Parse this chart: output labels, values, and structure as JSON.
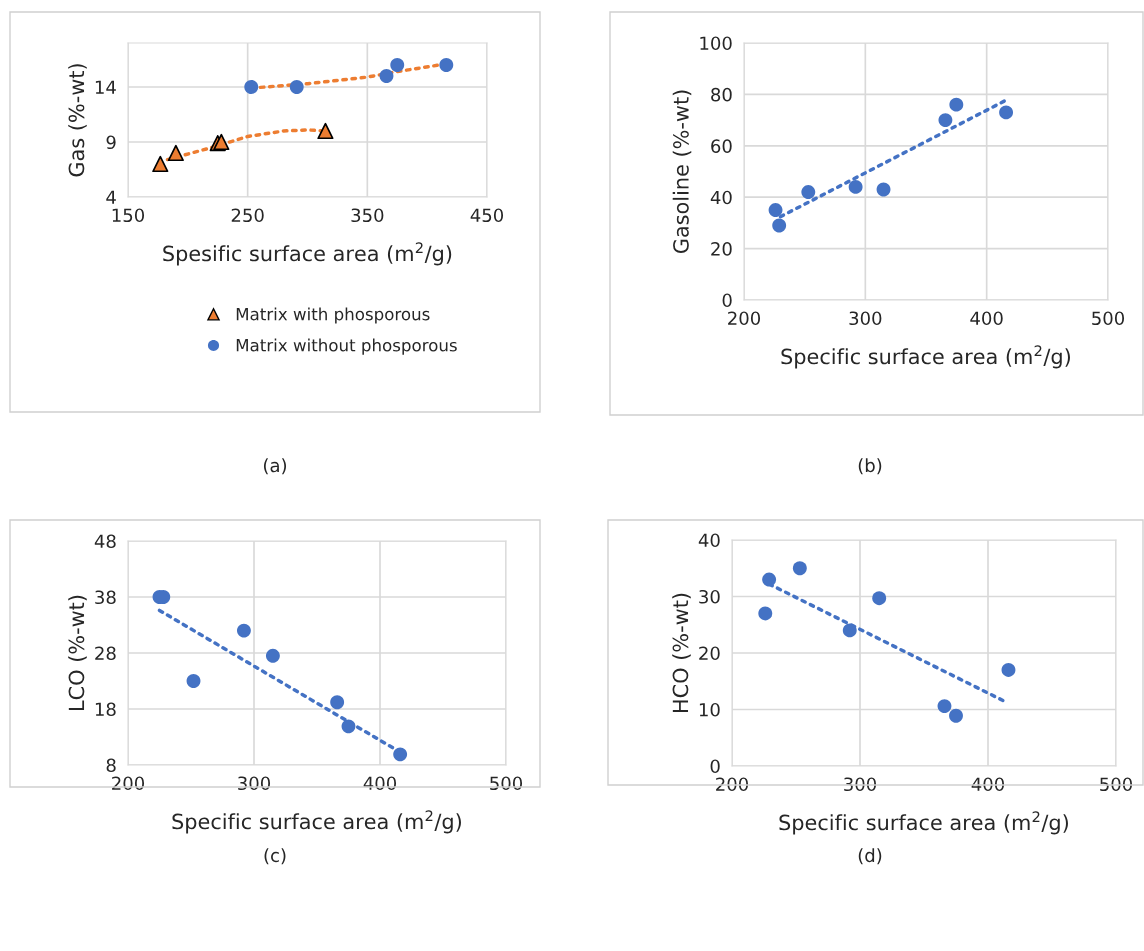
{
  "chart_data": [
    {
      "type": "scatter",
      "xlabel": "Spesific surface area (m$^{2}$/g)",
      "ylabel": "Gas (%-wt)",
      "xlim": [
        150,
        450
      ],
      "xticks": [
        150,
        250,
        350,
        450
      ],
      "ylim": [
        4,
        18
      ],
      "yticks": [
        4,
        9,
        14
      ],
      "grid": true,
      "legend": "bottom",
      "annotations": [
        "(a)"
      ],
      "series": [
        {
          "name": "Matrix with phosporous",
          "color": "#ed7d31",
          "marker": "triangle",
          "x": [
            177,
            190,
            225,
            228,
            315
          ],
          "values": [
            7.0,
            8.0,
            8.9,
            9.0,
            10.0
          ]
        },
        {
          "name": "Matrix without phosporous",
          "color": "#4472c4",
          "marker": "circle",
          "x": [
            253,
            291,
            366,
            375,
            416
          ],
          "values": [
            14.0,
            14.0,
            15.0,
            16.0,
            16.0
          ]
        },
        {
          "type": "line",
          "color": "#ed7d31",
          "marker": "none",
          "line_style": "dotted",
          "x": [
            183,
            220,
            250,
            280,
            300,
            315
          ],
          "values": [
            7.4,
            8.5,
            9.5,
            10.0,
            10.1,
            10.0
          ]
        },
        {
          "type": "line",
          "color": "#ed7d31",
          "marker": "none",
          "line_style": "dotted",
          "x": [
            253,
            300,
            350,
            375,
            416
          ],
          "values": [
            13.9,
            14.3,
            14.9,
            15.4,
            16.1
          ]
        }
      ]
    },
    {
      "type": "scatter",
      "xlabel": "Specific surface area (m$^{2}$/g)",
      "ylabel": "Gasoline (%-wt)",
      "xlim": [
        200,
        500
      ],
      "xticks": [
        200,
        300,
        400,
        500
      ],
      "ylim": [
        0,
        100
      ],
      "yticks": [
        0,
        20,
        40,
        60,
        80,
        100
      ],
      "grid": true,
      "annotations": [
        "(b)"
      ],
      "series": [
        {
          "color": "#4472c4",
          "marker": "circle",
          "x": [
            226,
            229,
            253,
            292,
            315,
            366,
            375,
            416
          ],
          "values": [
            35,
            29,
            42,
            44,
            43,
            70,
            76,
            73
          ]
        },
        {
          "type": "line",
          "color": "#4472c4",
          "marker": "none",
          "line_style": "dotted",
          "x": [
            230,
            415
          ],
          "values": [
            32.4,
            77.5
          ]
        }
      ]
    },
    {
      "type": "scatter",
      "xlabel": "Specific surface area (m$^{2}$/g)",
      "ylabel": "LCO (%-wt)",
      "xlim": [
        200,
        500
      ],
      "xticks": [
        200,
        300,
        400,
        500
      ],
      "ylim": [
        8,
        48
      ],
      "yticks": [
        8,
        18,
        28,
        38,
        48
      ],
      "grid": true,
      "annotations": [
        "(c)"
      ],
      "series": [
        {
          "color": "#4472c4",
          "marker": "circle",
          "x": [
            225,
            228,
            252,
            292,
            315,
            366,
            375,
            416
          ],
          "values": [
            38,
            38,
            23,
            32,
            27.5,
            19.2,
            14.9,
            9.9
          ]
        },
        {
          "type": "line",
          "color": "#4472c4",
          "marker": "none",
          "line_style": "dotted",
          "x": [
            225,
            413
          ],
          "values": [
            35.6,
            10.7
          ]
        }
      ]
    },
    {
      "type": "scatter",
      "xlabel": "Specific surface area (m$^{2}$/g)",
      "ylabel": "HCO (%-wt)",
      "xlim": [
        200,
        500
      ],
      "xticks": [
        200,
        300,
        400,
        500
      ],
      "ylim": [
        0,
        40
      ],
      "yticks": [
        0,
        10,
        20,
        30,
        40
      ],
      "grid": true,
      "annotations": [
        "(d)"
      ],
      "series": [
        {
          "color": "#4472c4",
          "marker": "circle",
          "x": [
            226,
            229,
            253,
            292,
            315,
            366,
            375,
            416
          ],
          "values": [
            27,
            33,
            35,
            24,
            29.7,
            10.6,
            8.9,
            17
          ]
        },
        {
          "type": "line",
          "color": "#4472c4",
          "marker": "none",
          "line_style": "dotted",
          "x": [
            229,
            412.5
          ],
          "values": [
            32.2,
            11.5
          ]
        }
      ]
    }
  ]
}
